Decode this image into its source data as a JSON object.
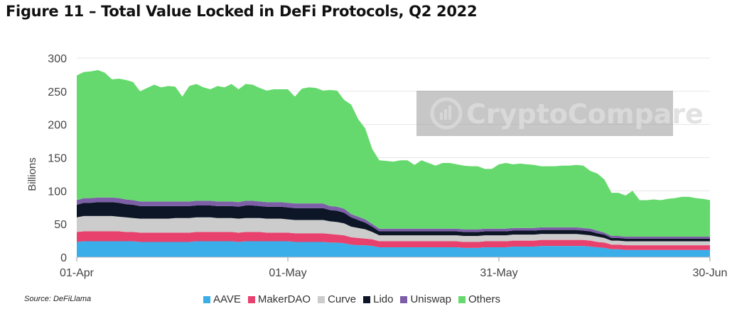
{
  "title": "Figure 11 – Total Value Locked in DeFi Protocols, Q2 2022",
  "source": "Source: DeFiLlama",
  "watermark": "CryptoCompare",
  "chart_data": {
    "type": "area",
    "stacked": true,
    "ylabel": "Billions",
    "ylim": [
      0,
      300
    ],
    "yticks": [
      0,
      50,
      100,
      150,
      200,
      250,
      300
    ],
    "xtick_labels": [
      {
        "index": 0,
        "label": "01-Apr"
      },
      {
        "index": 30,
        "label": "01-May"
      },
      {
        "index": 60,
        "label": "31-May"
      },
      {
        "index": 90,
        "label": "30-Jun"
      }
    ],
    "legend_position": "bottom",
    "series": [
      {
        "name": "AAVE",
        "color": "#3aaee8",
        "values": [
          23,
          24,
          24,
          24,
          24,
          24,
          24,
          24,
          24,
          23,
          23,
          23,
          23,
          23,
          23,
          23,
          23,
          24,
          24,
          24,
          24,
          24,
          24,
          23,
          24,
          24,
          24,
          24,
          24,
          24,
          24,
          23,
          23,
          23,
          23,
          23,
          22,
          22,
          21,
          19,
          18,
          18,
          17,
          15,
          15,
          15,
          15,
          15,
          15,
          15,
          15,
          15,
          15,
          15,
          15,
          14,
          14,
          14,
          15,
          15,
          15,
          15,
          16,
          16,
          16,
          16,
          17,
          17,
          17,
          17,
          17,
          17,
          17,
          16,
          15,
          14,
          12,
          12,
          11,
          11,
          11,
          11,
          11,
          11,
          11,
          11,
          11,
          11,
          11,
          11,
          11
        ]
      },
      {
        "name": "MakerDAO",
        "color": "#e8416d",
        "values": [
          15,
          15,
          15,
          15,
          15,
          15,
          15,
          14,
          14,
          14,
          14,
          14,
          14,
          14,
          14,
          14,
          14,
          14,
          14,
          14,
          14,
          14,
          14,
          14,
          14,
          14,
          14,
          13,
          13,
          13,
          13,
          13,
          13,
          13,
          13,
          13,
          13,
          12,
          12,
          11,
          11,
          10,
          10,
          9,
          9,
          9,
          9,
          9,
          9,
          9,
          9,
          9,
          9,
          9,
          9,
          9,
          9,
          9,
          9,
          9,
          9,
          9,
          9,
          9,
          9,
          9,
          9,
          9,
          9,
          9,
          9,
          9,
          9,
          9,
          8,
          8,
          7,
          7,
          7,
          7,
          7,
          7,
          7,
          7,
          7,
          7,
          7,
          7,
          7,
          7,
          7
        ]
      },
      {
        "name": "Curve",
        "color": "#cccccc",
        "values": [
          22,
          23,
          23,
          23,
          23,
          23,
          22,
          22,
          21,
          21,
          21,
          21,
          21,
          21,
          22,
          22,
          22,
          22,
          22,
          22,
          21,
          21,
          21,
          21,
          21,
          21,
          21,
          21,
          21,
          21,
          20,
          20,
          20,
          20,
          20,
          20,
          19,
          19,
          18,
          16,
          15,
          14,
          11,
          9,
          9,
          9,
          9,
          9,
          9,
          9,
          9,
          9,
          9,
          9,
          9,
          9,
          9,
          9,
          9,
          9,
          9,
          9,
          9,
          9,
          9,
          9,
          9,
          9,
          9,
          9,
          9,
          9,
          8,
          8,
          8,
          7,
          6,
          6,
          6,
          6,
          6,
          6,
          6,
          6,
          6,
          6,
          6,
          6,
          6,
          6,
          6
        ]
      },
      {
        "name": "Lido",
        "color": "#0d1626",
        "values": [
          19,
          20,
          20,
          21,
          21,
          21,
          21,
          20,
          20,
          19,
          19,
          19,
          19,
          19,
          18,
          18,
          18,
          18,
          18,
          18,
          18,
          18,
          18,
          18,
          19,
          19,
          18,
          18,
          18,
          18,
          18,
          18,
          18,
          18,
          18,
          18,
          17,
          17,
          16,
          14,
          12,
          10,
          8,
          6,
          6,
          6,
          6,
          6,
          6,
          6,
          6,
          6,
          6,
          6,
          6,
          6,
          6,
          6,
          6,
          6,
          6,
          6,
          6,
          6,
          6,
          6,
          6,
          6,
          6,
          6,
          6,
          6,
          6,
          6,
          5,
          5,
          4,
          4,
          4,
          4,
          4,
          4,
          4,
          4,
          4,
          4,
          4,
          4,
          4,
          4,
          4
        ]
      },
      {
        "name": "Uniswap",
        "color": "#7d5fa8",
        "values": [
          7,
          7,
          7,
          7,
          7,
          7,
          7,
          7,
          7,
          7,
          7,
          7,
          7,
          7,
          7,
          7,
          7,
          7,
          7,
          7,
          7,
          7,
          7,
          7,
          7,
          7,
          7,
          7,
          7,
          7,
          7,
          7,
          7,
          7,
          7,
          7,
          6,
          6,
          6,
          5,
          5,
          5,
          4,
          4,
          4,
          4,
          4,
          4,
          4,
          4,
          4,
          4,
          4,
          4,
          4,
          4,
          4,
          4,
          4,
          4,
          4,
          4,
          4,
          4,
          4,
          4,
          4,
          4,
          4,
          4,
          4,
          4,
          4,
          4,
          4,
          3,
          3,
          3,
          3,
          3,
          3,
          3,
          3,
          3,
          3,
          3,
          3,
          3,
          3,
          3,
          3
        ]
      },
      {
        "name": "Others",
        "color": "#66d96e",
        "values": [
          188,
          190,
          191,
          192,
          188,
          178,
          180,
          180,
          178,
          166,
          171,
          176,
          172,
          174,
          173,
          158,
          174,
          176,
          171,
          168,
          174,
          172,
          177,
          170,
          176,
          175,
          171,
          168,
          170,
          170,
          171,
          161,
          173,
          175,
          174,
          170,
          175,
          175,
          164,
          165,
          147,
          137,
          113,
          103,
          102,
          101,
          103,
          103,
          96,
          103,
          99,
          95,
          99,
          99,
          97,
          96,
          95,
          95,
          90,
          90,
          97,
          99,
          96,
          97,
          96,
          95,
          92,
          92,
          92,
          93,
          93,
          94,
          94,
          87,
          86,
          80,
          65,
          65,
          62,
          69,
          55,
          55,
          56,
          55,
          57,
          58,
          60,
          60,
          58,
          57,
          55
        ]
      }
    ]
  }
}
